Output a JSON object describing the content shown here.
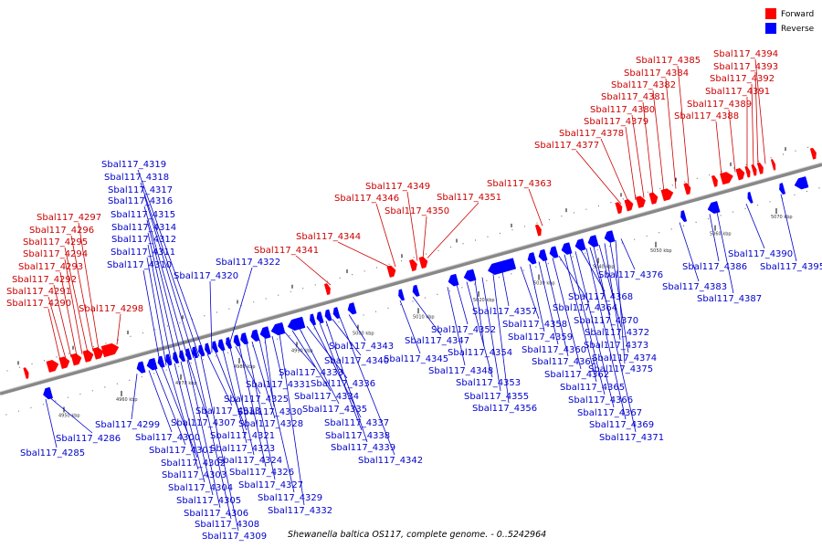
{
  "legend": [
    {
      "name": "Forward",
      "color": "#ff0000"
    },
    {
      "name": "Reverse",
      "color": "#0000ff"
    }
  ],
  "caption": "Shewanella baltica OS117, complete genome. - 0..5242964",
  "axis_ticks": [
    "4950 kbp",
    "4960 kbp",
    "4970 kbp",
    "4980 kbp",
    "4990 kbp",
    "5000 kbp",
    "5010 kbp",
    "5020 kbp",
    "5030 kbp",
    "5040 kbp",
    "5050 kbp",
    "5060 kbp",
    "5070 kbp"
  ],
  "forward_labels": [
    "Sbal117_4290",
    "Sbal117_4291",
    "Sbal117_4292",
    "Sbal117_4293",
    "Sbal117_4294",
    "Sbal117_4295",
    "Sbal117_4296",
    "Sbal117_4297",
    "Sbal117_4298",
    "Sbal117_4341",
    "Sbal117_4344",
    "Sbal117_4346",
    "Sbal117_4349",
    "Sbal117_4350",
    "Sbal117_4351",
    "Sbal117_4363",
    "Sbal117_4377",
    "Sbal117_4378",
    "Sbal117_4379",
    "Sbal117_4380",
    "Sbal117_4381",
    "Sbal117_4382",
    "Sbal117_4384",
    "Sbal117_4385",
    "Sbal117_4388",
    "Sbal117_4389",
    "Sbal117_4391",
    "Sbal117_4392",
    "Sbal117_4393",
    "Sbal117_4394"
  ],
  "reverse_labels": [
    "Sbal117_4285",
    "Sbal117_4286",
    "Sbal117_4299",
    "Sbal117_4300",
    "Sbal117_4301",
    "Sbal117_4302",
    "Sbal117_4303",
    "Sbal117_4304",
    "Sbal117_4305",
    "Sbal117_4306",
    "Sbal117_4307",
    "Sbal117_4308",
    "Sbal117_4309",
    "Sbal117_4310",
    "Sbal117_4311",
    "Sbal117_4312",
    "Sbal117_4313",
    "Sbal117_4314",
    "Sbal117_4315",
    "Sbal117_4316",
    "Sbal117_4317",
    "Sbal117_4318",
    "Sbal117_4319",
    "Sbal117_4320",
    "Sbal117_4321",
    "Sbal117_4322",
    "Sbal117_4323",
    "Sbal117_4324",
    "Sbal117_4325",
    "Sbal117_4326",
    "Sbal117_4327",
    "Sbal117_4328",
    "Sbal117_4329",
    "Sbal117_4330",
    "Sbal117_4331",
    "Sbal117_4332",
    "Sbal117_4333",
    "Sbal117_4334",
    "Sbal117_4335",
    "Sbal117_4336",
    "Sbal117_4337",
    "Sbal117_4338",
    "Sbal117_4339",
    "Sbal117_4340",
    "Sbal117_4342",
    "Sbal117_4343",
    "Sbal117_4345",
    "Sbal117_4347",
    "Sbal117_4348",
    "Sbal117_4352",
    "Sbal117_4353",
    "Sbal117_4354",
    "Sbal117_4355",
    "Sbal117_4356",
    "Sbal117_4357",
    "Sbal117_4358",
    "Sbal117_4359",
    "Sbal117_4360",
    "Sbal117_4361",
    "Sbal117_4362",
    "Sbal117_4364",
    "Sbal117_4365",
    "Sbal117_4366",
    "Sbal117_4367",
    "Sbal117_4368",
    "Sbal117_4369",
    "Sbal117_4370",
    "Sbal117_4371",
    "Sbal117_4372",
    "Sbal117_4373",
    "Sbal117_4374",
    "Sbal117_4375",
    "Sbal117_4376",
    "Sbal117_4383",
    "Sbal117_4386",
    "Sbal117_4387",
    "Sbal117_4390",
    "Sbal117_4395"
  ]
}
